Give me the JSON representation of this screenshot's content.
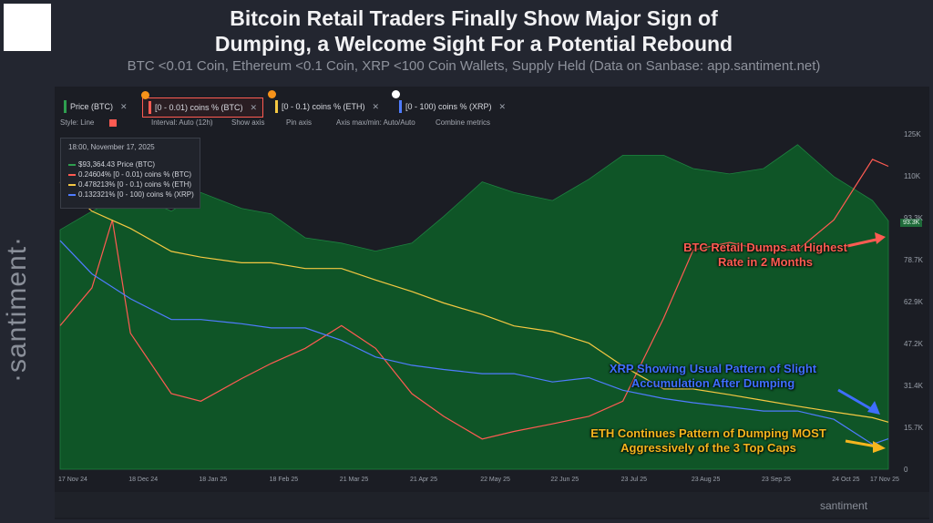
{
  "header": {
    "title_line1": "Bitcoin Retail Traders Finally Show Major Sign of",
    "title_line2": "Dumping, a Welcome Sight For a Potential Rebound",
    "subtitle": "BTC <0.01 Coin, Ethereum <0.1 Coin, XRP <100 Coin Wallets, Supply Held (Data on Sanbase: app.santiment.net)"
  },
  "watermark": "·santiment·",
  "brand": "santiment",
  "metric_tabs": [
    {
      "label": "Price (BTC)",
      "color": "#2e9e4f"
    },
    {
      "label": "[0 - 0.01) coins % (BTC)",
      "color": "#ff5b52"
    },
    {
      "label": "[0 - 0.1) coins % (ETH)",
      "color": "#f5c842"
    },
    {
      "label": "[0 - 100) coins % (XRP)",
      "color": "#4f7cff"
    }
  ],
  "toolbar": {
    "style": "Style: Line",
    "interval": "Interval: Auto (12h)",
    "show_axis": "Show axis",
    "pin_axis": "Pin axis",
    "axis_maxmin": "Axis max/min: Auto/Auto",
    "combine": "Combine metrics"
  },
  "tooltip": {
    "date": "18:00, November 17, 2025",
    "rows": [
      {
        "value": "$93,364.43",
        "label": "Price (BTC)",
        "color": "#2e9e4f"
      },
      {
        "value": "0.24604%",
        "label": "[0 - 0.01) coins % (BTC)",
        "color": "#ff5b52"
      },
      {
        "value": "0.478213%",
        "label": "[0 - 0.1) coins % (ETH)",
        "color": "#f5c842"
      },
      {
        "value": "0.132321%",
        "label": "[0 - 100) coins % (XRP)",
        "color": "#4f7cff"
      }
    ]
  },
  "price_badge": "93.3K",
  "annotations": {
    "btc": "BTC Retail Dumps at Highest Rate in 2 Months",
    "xrp": "XRP Showing Usual Pattern of Slight Accumulation After Dumping",
    "eth": "ETH Continues Pattern of Dumping MOST Aggressively of the 3 Top Caps"
  },
  "colors": {
    "price_fill": "#0f5a28",
    "btc_line": "#ff5b52",
    "eth_line": "#f5c842",
    "xrp_line": "#4f7cff",
    "btc_annot": "#ff5b52",
    "xrp_annot": "#3f6eff",
    "eth_annot": "#f5b51e"
  },
  "chart_data": {
    "type": "area",
    "title": "Bitcoin Retail Traders Finally Show Major Sign of Dumping, a Welcome Sight For a Potential Rebound",
    "x_ticks": [
      "17 Nov 24",
      "18 Dec 24",
      "18 Jan 25",
      "18 Feb 25",
      "21 Mar 25",
      "21 Apr 25",
      "22 May 25",
      "22 Jun 25",
      "23 Jul 25",
      "23 Aug 25",
      "23 Sep 25",
      "24 Oct 25",
      "17 Nov 25"
    ],
    "y_ticks": [
      "125K",
      "110K",
      "93.3K",
      "78.7K",
      "62.9K",
      "47.2K",
      "31.4K",
      "15.7K",
      "0"
    ],
    "ylim": [
      0,
      125000
    ],
    "grid": false,
    "series": [
      {
        "name": "Price (BTC)",
        "type": "area",
        "x": [
          "17 Nov 24",
          "1 Dec 24",
          "18 Dec 24",
          "5 Jan 25",
          "18 Jan 25",
          "5 Feb 25",
          "18 Feb 25",
          "5 Mar 25",
          "21 Mar 25",
          "5 Apr 25",
          "21 Apr 25",
          "5 May 25",
          "22 May 25",
          "5 Jun 25",
          "22 Jun 25",
          "8 Jul 25",
          "23 Jul 25",
          "10 Aug 25",
          "23 Aug 25",
          "8 Sep 25",
          "23 Sep 25",
          "8 Oct 25",
          "24 Oct 25",
          "10 Nov 25",
          "17 Nov 25"
        ],
        "values": [
          90000,
          97000,
          104000,
          97000,
          104000,
          98000,
          96000,
          87000,
          85000,
          82000,
          85000,
          95000,
          108000,
          104000,
          101000,
          109000,
          118000,
          118000,
          113000,
          111000,
          113000,
          122000,
          110000,
          101000,
          93364
        ]
      },
      {
        "name": "[0 - 0.01) coins % (BTC)",
        "type": "line",
        "x": [
          "17 Nov 24",
          "1 Dec 24",
          "10 Dec 24",
          "18 Dec 24",
          "5 Jan 25",
          "18 Jan 25",
          "5 Feb 25",
          "18 Feb 25",
          "5 Mar 25",
          "21 Mar 25",
          "5 Apr 25",
          "21 Apr 25",
          "5 May 25",
          "22 May 25",
          "5 Jun 25",
          "22 Jun 25",
          "8 Jul 25",
          "23 Jul 25",
          "10 Aug 25",
          "23 Aug 25",
          "8 Sep 25",
          "23 Sep 25",
          "8 Oct 25",
          "24 Oct 25",
          "10 Nov 25",
          "17 Nov 25"
        ],
        "values": [
          0.2355,
          0.238,
          0.2425,
          0.235,
          0.231,
          0.2305,
          0.232,
          0.233,
          0.234,
          0.2355,
          0.234,
          0.231,
          0.2295,
          0.228,
          0.2285,
          0.229,
          0.2295,
          0.2305,
          0.236,
          0.2405,
          0.241,
          0.2405,
          0.2405,
          0.2425,
          0.2465,
          0.24604
        ]
      },
      {
        "name": "[0 - 0.1) coins % (ETH)",
        "type": "line",
        "x": [
          "17 Nov 24",
          "1 Dec 24",
          "18 Dec 24",
          "5 Jan 25",
          "18 Jan 25",
          "5 Feb 25",
          "18 Feb 25",
          "5 Mar 25",
          "21 Mar 25",
          "5 Apr 25",
          "21 Apr 25",
          "5 May 25",
          "22 May 25",
          "5 Jun 25",
          "22 Jun 25",
          "8 Jul 25",
          "23 Jul 25",
          "10 Aug 25",
          "23 Aug 25",
          "8 Sep 25",
          "23 Sep 25",
          "8 Oct 25",
          "24 Oct 25",
          "10 Nov 25",
          "17 Nov 25"
        ],
        "values": [
          0.52,
          0.515,
          0.512,
          0.508,
          0.507,
          0.506,
          0.506,
          0.505,
          0.505,
          0.503,
          0.501,
          0.499,
          0.497,
          0.495,
          0.494,
          0.492,
          0.488,
          0.484,
          0.484,
          0.483,
          0.482,
          0.481,
          0.48,
          0.479,
          0.478213
        ]
      },
      {
        "name": "[0 - 100) coins % (XRP)",
        "type": "line",
        "x": [
          "17 Nov 24",
          "1 Dec 24",
          "18 Dec 24",
          "5 Jan 25",
          "18 Jan 25",
          "5 Feb 25",
          "18 Feb 25",
          "5 Mar 25",
          "21 Mar 25",
          "5 Apr 25",
          "21 Apr 25",
          "5 May 25",
          "22 May 25",
          "5 Jun 25",
          "22 Jun 25",
          "8 Jul 25",
          "23 Jul 25",
          "10 Aug 25",
          "23 Aug 25",
          "8 Sep 25",
          "23 Sep 25",
          "8 Oct 25",
          "24 Oct 25",
          "10 Nov 25",
          "17 Nov 25"
        ],
        "values": [
          0.18,
          0.172,
          0.166,
          0.161,
          0.161,
          0.16,
          0.159,
          0.159,
          0.156,
          0.152,
          0.15,
          0.149,
          0.148,
          0.148,
          0.146,
          0.147,
          0.144,
          0.142,
          0.141,
          0.14,
          0.139,
          0.139,
          0.137,
          0.131,
          0.132321
        ]
      }
    ]
  }
}
